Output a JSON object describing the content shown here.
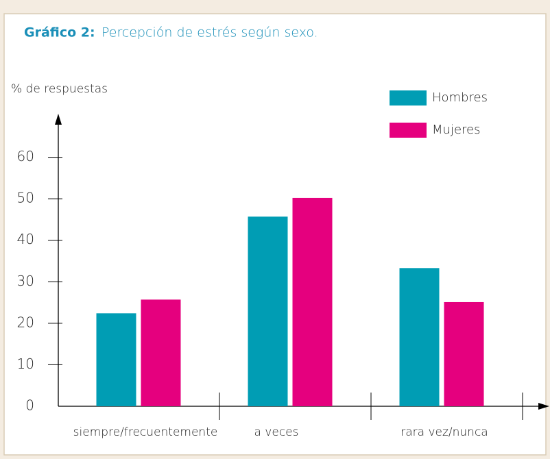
{
  "chart_data": {
    "type": "bar",
    "title_label": "Gráfico 2:",
    "title": "Percepción de estrés según sexo.",
    "y_label": "% de respuestas",
    "categories": [
      "siempre/frecuentemente",
      "a veces",
      "rara vez/nunca"
    ],
    "series": [
      {
        "name": "Hombres",
        "color": "#009db4",
        "values": [
          22.4,
          45.7,
          33.3
        ]
      },
      {
        "name": "Mujeres",
        "color": "#e5007e",
        "values": [
          25.7,
          50.2,
          25.1
        ]
      }
    ],
    "ylim": [
      0,
      70
    ],
    "yticks": [
      0,
      10,
      20,
      30,
      40,
      50,
      60
    ]
  }
}
